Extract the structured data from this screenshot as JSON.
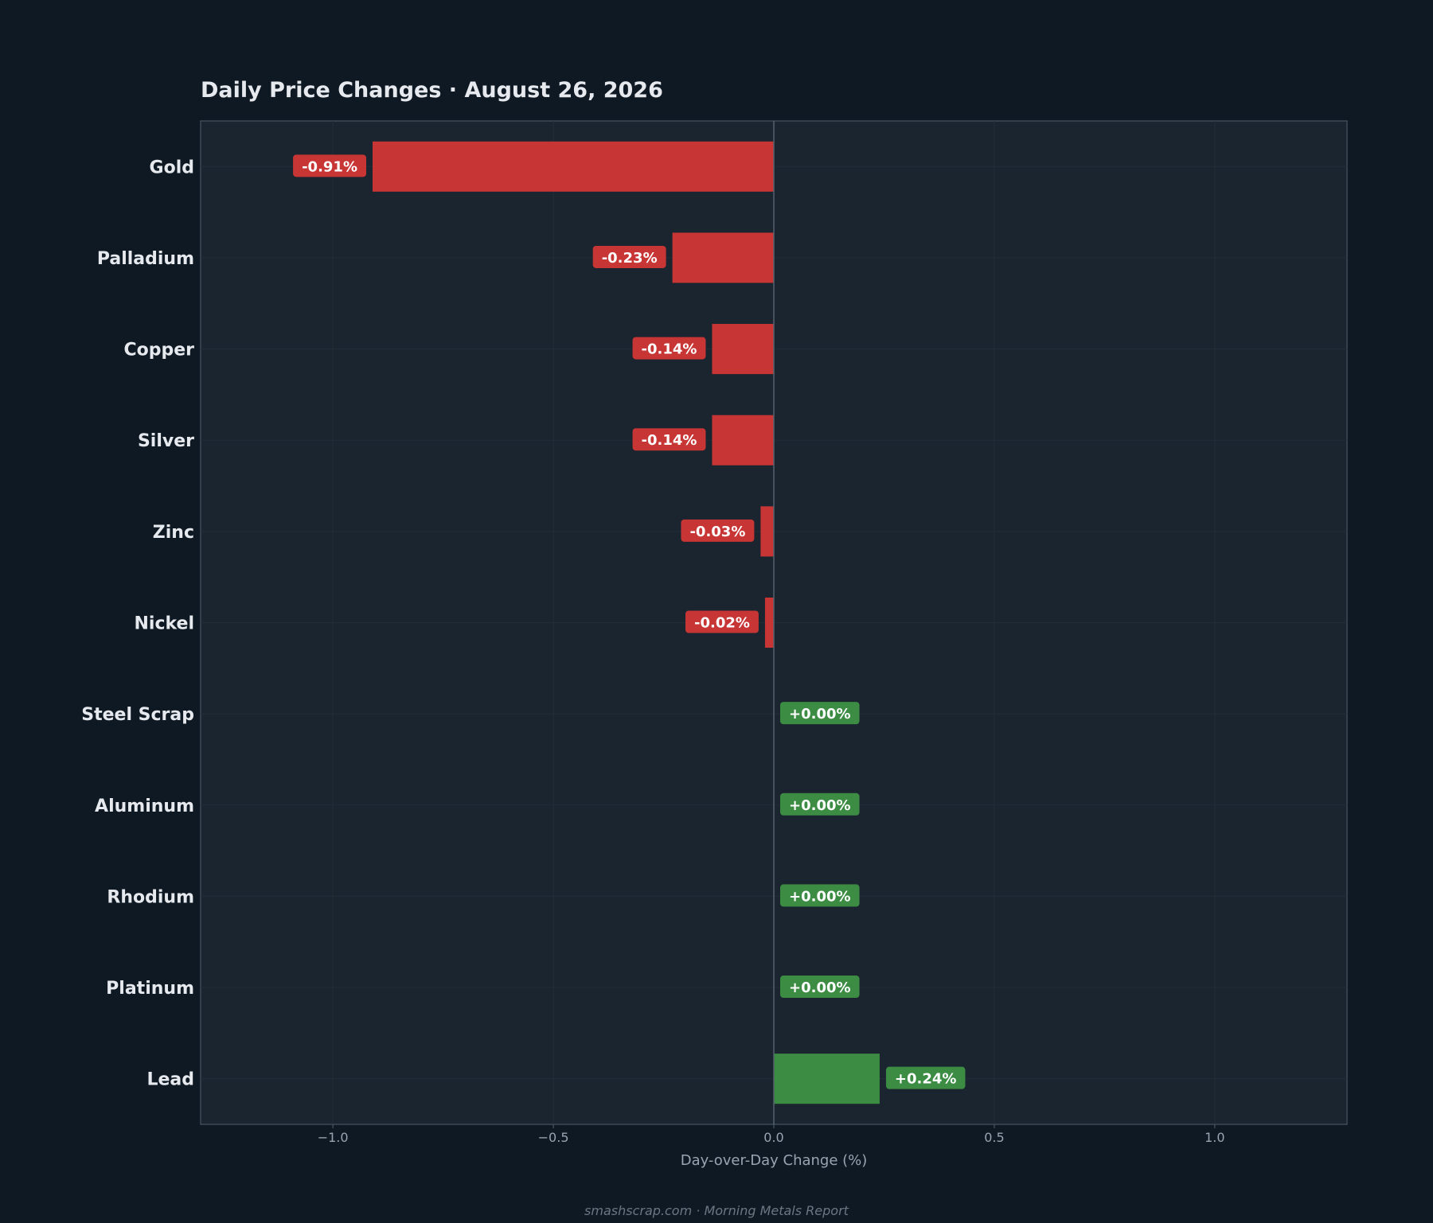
{
  "chart_data": {
    "type": "bar",
    "orientation": "horizontal",
    "title": "Daily Price Changes  ·  August 26, 2026",
    "xlabel": "Day-over-Day Change (%)",
    "ylabel": "",
    "categories": [
      "Gold",
      "Palladium",
      "Copper",
      "Silver",
      "Zinc",
      "Nickel",
      "Steel Scrap",
      "Aluminum",
      "Rhodium",
      "Platinum",
      "Lead"
    ],
    "values": [
      -0.91,
      -0.23,
      -0.14,
      -0.14,
      -0.03,
      -0.02,
      0.0,
      0.0,
      0.0,
      0.0,
      0.24
    ],
    "value_labels": [
      "-0.91%",
      "-0.23%",
      "-0.14%",
      "-0.14%",
      "-0.03%",
      "-0.02%",
      "+0.00%",
      "+0.00%",
      "+0.00%",
      "+0.00%",
      "+0.24%"
    ],
    "xlim": [
      -1.3,
      1.3
    ],
    "xticks": [
      -1.0,
      -0.5,
      0.0,
      0.5,
      1.0
    ],
    "xtick_labels": [
      "−1.0",
      "−0.5",
      "0.0",
      "0.5",
      "1.0"
    ],
    "grid": true,
    "legend": "none",
    "colors": {
      "negative": "#c73535",
      "positive": "#3c8c44",
      "background": "#0f1923",
      "plot_background": "#1b2530",
      "text": "#e6e9ee",
      "muted_text": "#9aa4b0"
    }
  },
  "footer": "smashscrap.com  ·  Morning Metals Report"
}
